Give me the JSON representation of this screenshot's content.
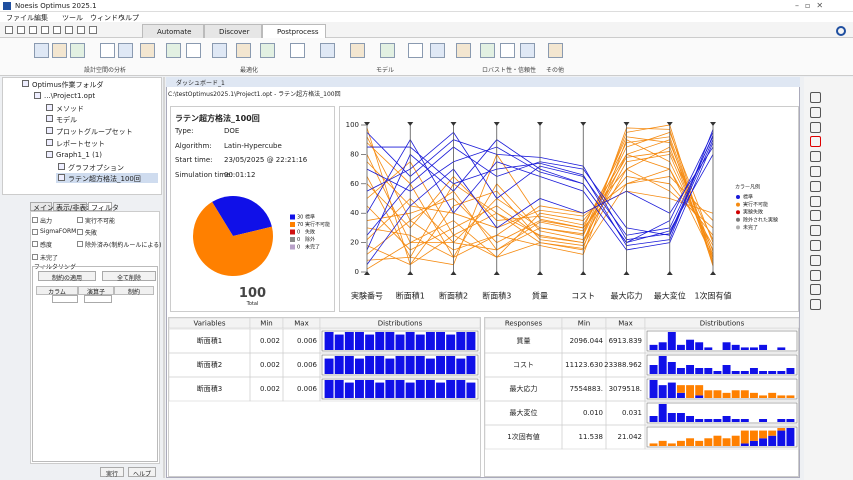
{
  "window": {
    "title": "Noesis Optimus 2025.1"
  },
  "menu": [
    "ファイル",
    "編集",
    "ツール",
    "ウィンドウ",
    "ヘルプ"
  ],
  "tabs": [
    "Automate",
    "Discover",
    "Postprocess"
  ],
  "toolbar_groups": [
    "設計空間の分析",
    "最適化",
    "モデル",
    "ロバスト性・信頼性",
    "その他"
  ],
  "tree": [
    "Optimus作業フォルダ",
    "...\\Project1.opt",
    "メソッド",
    "モデル",
    "プロットグループセット",
    "レポートセット",
    "Graph1_1 (1)",
    "グラフオプション",
    "ラテン超方格法_100回"
  ],
  "left_tabs": [
    "メイン",
    "表示/非表示",
    "フィルタ"
  ],
  "filters": [
    "出力",
    "実行不可能",
    "SigmaFORM",
    "失敗",
    "感度",
    "除外済み(制約ルールによる)",
    "未完了"
  ],
  "filtering": {
    "title": "フィルタリング",
    "buttons": [
      "制約の適用",
      "全て削除"
    ],
    "columns": [
      "カラム",
      "演算子",
      "制約"
    ]
  },
  "bottom_buttons": [
    "実行",
    "ヘルプ"
  ],
  "dashboard": {
    "title": "ダッシュボード_1",
    "path": "C:\\testOptimus2025.1\\Project1.opt - ラテン超方格法_100回"
  },
  "summary": {
    "title": "ラテン超方格法_100回",
    "fields": [
      [
        "Type:",
        "DOE"
      ],
      [
        "Algorithm:",
        "Latin-Hypercube"
      ],
      [
        "Start time:",
        "23/05/2025 @ 22:21:16"
      ],
      [
        "Simulation time:",
        "00:01:12"
      ]
    ]
  },
  "pie": {
    "type": "pie",
    "total": 100,
    "total_label": "Total",
    "slices": [
      {
        "name": "標準",
        "value": 30,
        "color": "#1010e8"
      },
      {
        "name": "実行不可能",
        "value": 70,
        "color": "#ff8000"
      },
      {
        "name": "失敗",
        "value": 0,
        "color": "#d01010"
      },
      {
        "name": "除外",
        "value": 0,
        "color": "#888888"
      },
      {
        "name": "未完了",
        "value": 0,
        "color": "#b8a0c8"
      }
    ]
  },
  "parallel": {
    "type": "parallel",
    "axes": [
      "実験番号",
      "断面積1",
      "断面積2",
      "断面積3",
      "質量",
      "コスト",
      "最大応力",
      "最大変位",
      "1次固有値"
    ],
    "ylim": [
      0,
      100
    ],
    "yticks": [
      0,
      20,
      40,
      60,
      80,
      100
    ],
    "legend_title": "カラー凡例",
    "status": [
      {
        "name": "標準",
        "color": "#1a1ad8"
      },
      {
        "name": "実行不可能",
        "color": "#f58a10"
      },
      {
        "name": "実験失敗",
        "color": "#d00000"
      },
      {
        "name": "除外された実験",
        "color": "#7a7a7a"
      },
      {
        "name": "未完了",
        "color": "#b0b0b0"
      }
    ],
    "lines": [
      {
        "status": 1,
        "values": [
          2,
          20,
          35,
          10,
          20,
          15,
          60,
          70,
          10
        ]
      },
      {
        "status": 1,
        "values": [
          8,
          10,
          60,
          40,
          25,
          20,
          80,
          90,
          5
        ]
      },
      {
        "status": 1,
        "values": [
          12,
          35,
          15,
          25,
          18,
          12,
          90,
          75,
          15
        ]
      },
      {
        "status": 1,
        "values": [
          18,
          5,
          45,
          55,
          22,
          18,
          70,
          85,
          8
        ]
      },
      {
        "status": 1,
        "values": [
          22,
          50,
          20,
          15,
          30,
          25,
          85,
          95,
          20
        ]
      },
      {
        "status": 1,
        "values": [
          30,
          25,
          10,
          60,
          28,
          22,
          75,
          80,
          12
        ]
      },
      {
        "status": 1,
        "values": [
          35,
          40,
          50,
          20,
          35,
          30,
          65,
          60,
          25
        ]
      },
      {
        "status": 1,
        "values": [
          45,
          15,
          30,
          45,
          24,
          20,
          95,
          100,
          6
        ]
      },
      {
        "status": 1,
        "values": [
          50,
          75,
          25,
          10,
          40,
          35,
          70,
          55,
          30
        ]
      },
      {
        "status": 1,
        "values": [
          60,
          30,
          65,
          35,
          38,
          32,
          80,
          70,
          18
        ]
      },
      {
        "status": 1,
        "values": [
          65,
          10,
          5,
          80,
          36,
          30,
          88,
          92,
          10
        ]
      },
      {
        "status": 1,
        "values": [
          75,
          45,
          40,
          30,
          42,
          38,
          60,
          65,
          35
        ]
      },
      {
        "status": 1,
        "values": [
          80,
          20,
          20,
          50,
          30,
          26,
          92,
          88,
          14
        ]
      },
      {
        "status": 1,
        "values": [
          88,
          60,
          10,
          25,
          45,
          40,
          55,
          50,
          40
        ]
      },
      {
        "status": 1,
        "values": [
          92,
          35,
          55,
          15,
          34,
          28,
          78,
          82,
          22
        ]
      },
      {
        "status": 1,
        "values": [
          98,
          5,
          25,
          40,
          20,
          16,
          98,
          97,
          4
        ]
      },
      {
        "status": 0,
        "values": [
          5,
          45,
          70,
          30,
          50,
          40,
          55,
          40,
          85
        ]
      },
      {
        "status": 0,
        "values": [
          15,
          80,
          55,
          90,
          70,
          60,
          20,
          35,
          95
        ]
      },
      {
        "status": 0,
        "values": [
          25,
          60,
          85,
          65,
          75,
          70,
          30,
          25,
          90
        ]
      },
      {
        "status": 0,
        "values": [
          40,
          90,
          40,
          75,
          65,
          55,
          15,
          20,
          88
        ]
      },
      {
        "status": 0,
        "values": [
          55,
          70,
          95,
          50,
          72,
          65,
          25,
          30,
          92
        ]
      },
      {
        "status": 0,
        "values": [
          70,
          55,
          75,
          85,
          68,
          60,
          20,
          28,
          80
        ]
      },
      {
        "status": 0,
        "values": [
          85,
          85,
          60,
          70,
          74,
          66,
          18,
          22,
          97
        ]
      },
      {
        "status": 0,
        "values": [
          95,
          65,
          90,
          80,
          78,
          72,
          22,
          26,
          93
        ]
      }
    ]
  },
  "variables": {
    "headers": [
      "Variables",
      "Min",
      "Max",
      "Distributions"
    ],
    "rows": [
      {
        "name": "断面積1",
        "min": "0.002",
        "max": "0.006",
        "hist": [
          7,
          6,
          7,
          7,
          6,
          7,
          7,
          6,
          7,
          6,
          7,
          7,
          6,
          7,
          7
        ]
      },
      {
        "name": "断面積2",
        "min": "0.002",
        "max": "0.006",
        "hist": [
          6,
          7,
          7,
          6,
          7,
          7,
          6,
          7,
          7,
          7,
          6,
          7,
          7,
          6,
          7
        ]
      },
      {
        "name": "断面積3",
        "min": "0.002",
        "max": "0.006",
        "hist": [
          7,
          7,
          6,
          7,
          7,
          6,
          7,
          7,
          6,
          7,
          7,
          6,
          7,
          7,
          6
        ]
      }
    ]
  },
  "responses": {
    "headers": [
      "Responses",
      "Min",
      "Max",
      "Distributions"
    ],
    "rows": [
      {
        "name": "質量",
        "min": "2096.044",
        "max": "6913.839",
        "standard": [
          2,
          3,
          7,
          2,
          4,
          3,
          1,
          0,
          3,
          2,
          1,
          1,
          2,
          0,
          1,
          0
        ],
        "infeasible": [
          0,
          0,
          0,
          0,
          0,
          0,
          0,
          0,
          0,
          0,
          0,
          0,
          0,
          0,
          0,
          0
        ]
      },
      {
        "name": "コスト",
        "min": "11123.630",
        "max": "23388.962",
        "standard": [
          3,
          6,
          4,
          2,
          3,
          2,
          2,
          1,
          3,
          1,
          1,
          2,
          1,
          1,
          1,
          2
        ],
        "infeasible": [
          0,
          0,
          0,
          0,
          0,
          0,
          0,
          0,
          0,
          0,
          0,
          0,
          0,
          0,
          0,
          0
        ]
      },
      {
        "name": "最大応力",
        "min": "7554883.",
        "max": "3079518.",
        "standard": [
          7,
          5,
          6,
          2,
          0,
          1,
          0,
          0,
          0,
          0,
          0,
          0,
          0,
          0,
          0,
          0
        ],
        "infeasible": [
          0,
          0,
          0,
          3,
          5,
          4,
          3,
          3,
          2,
          3,
          3,
          2,
          1,
          2,
          1,
          1
        ]
      },
      {
        "name": "最大変位",
        "min": "0.010",
        "max": "0.031",
        "standard": [
          2,
          6,
          3,
          3,
          2,
          1,
          1,
          1,
          2,
          1,
          1,
          0,
          1,
          0,
          1,
          1
        ],
        "infeasible": [
          0,
          0,
          0,
          0,
          0,
          0,
          0,
          0,
          0,
          0,
          0,
          0,
          0,
          0,
          0,
          0
        ]
      },
      {
        "name": "1次固有値",
        "min": "11.538",
        "max": "21.042",
        "standard": [
          0,
          0,
          0,
          0,
          0,
          0,
          0,
          0,
          0,
          0,
          1,
          2,
          3,
          4,
          6,
          7
        ],
        "infeasible": [
          1,
          2,
          1,
          2,
          3,
          2,
          3,
          4,
          3,
          4,
          5,
          4,
          3,
          2,
          1,
          0
        ]
      }
    ]
  }
}
